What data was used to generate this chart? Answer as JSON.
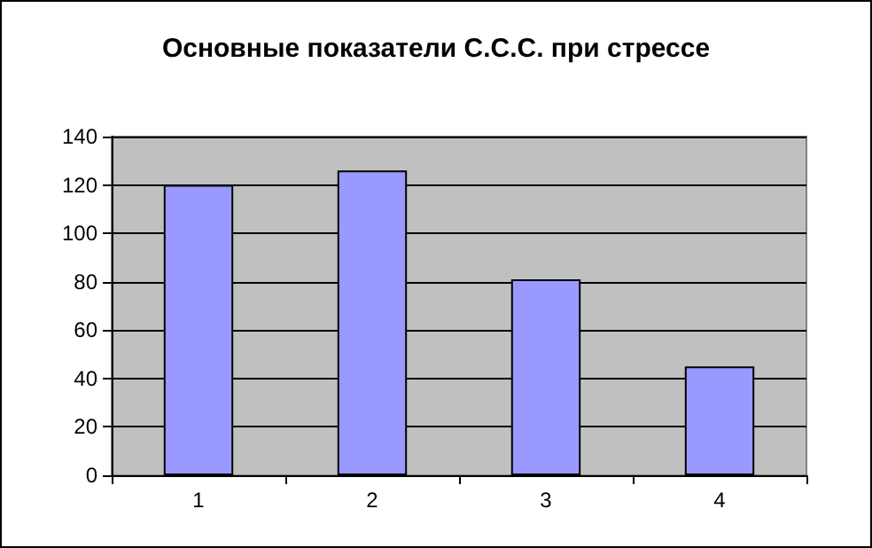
{
  "chart_data": {
    "type": "bar",
    "title": "Основные показатели С.С.С. при стрессе",
    "categories": [
      "1",
      "2",
      "3",
      "4"
    ],
    "values": [
      120,
      126,
      81,
      45
    ],
    "color": "#9999ff",
    "ylim": [
      0,
      140
    ],
    "yticks": [
      0,
      20,
      40,
      60,
      80,
      100,
      120,
      140
    ],
    "grid": true
  }
}
